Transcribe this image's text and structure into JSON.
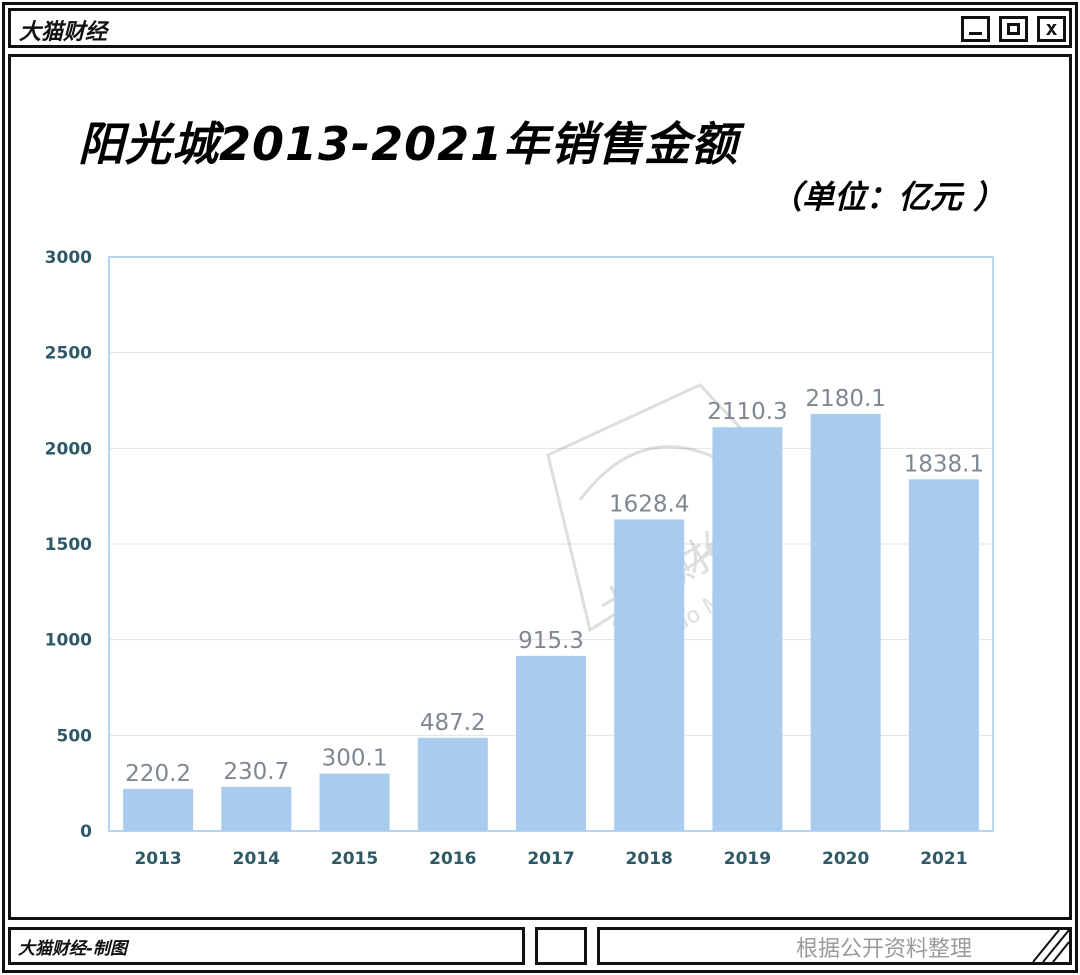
{
  "window": {
    "title": "大猫财经",
    "close_glyph": "x"
  },
  "footer": {
    "credit": "大猫财经-制图",
    "source": "根据公开资料整理"
  },
  "watermark": {
    "brand": "大猫财经",
    "text": "Da Mao Money"
  },
  "colors": {
    "bar": "#a9cbed",
    "axis_frame": "#b8d4ee",
    "grid": "#e2e2e2",
    "tick_label": "#2f5967",
    "value_label": "#7f8890"
  },
  "chart_data": {
    "type": "bar",
    "title": "阳光城2013-2021年销售金额",
    "unit": "（单位：亿元 ）",
    "categories": [
      "2013",
      "2014",
      "2015",
      "2016",
      "2017",
      "2018",
      "2019",
      "2020",
      "2021"
    ],
    "values": [
      220.2,
      230.7,
      300.1,
      487.2,
      915.3,
      1628.4,
      2110.3,
      2180.1,
      1838.1
    ],
    "value_labels": [
      "220.2",
      "230.7",
      "300.1",
      "487.2",
      "915.3",
      "1628.4",
      "2110.3",
      "2180.1",
      "1838.1"
    ],
    "yticks": [
      "0",
      "500",
      "1000",
      "1500",
      "2000",
      "2500",
      "3000"
    ],
    "ylim": [
      0,
      3000
    ],
    "grid": true,
    "xlabel": "",
    "ylabel": ""
  }
}
